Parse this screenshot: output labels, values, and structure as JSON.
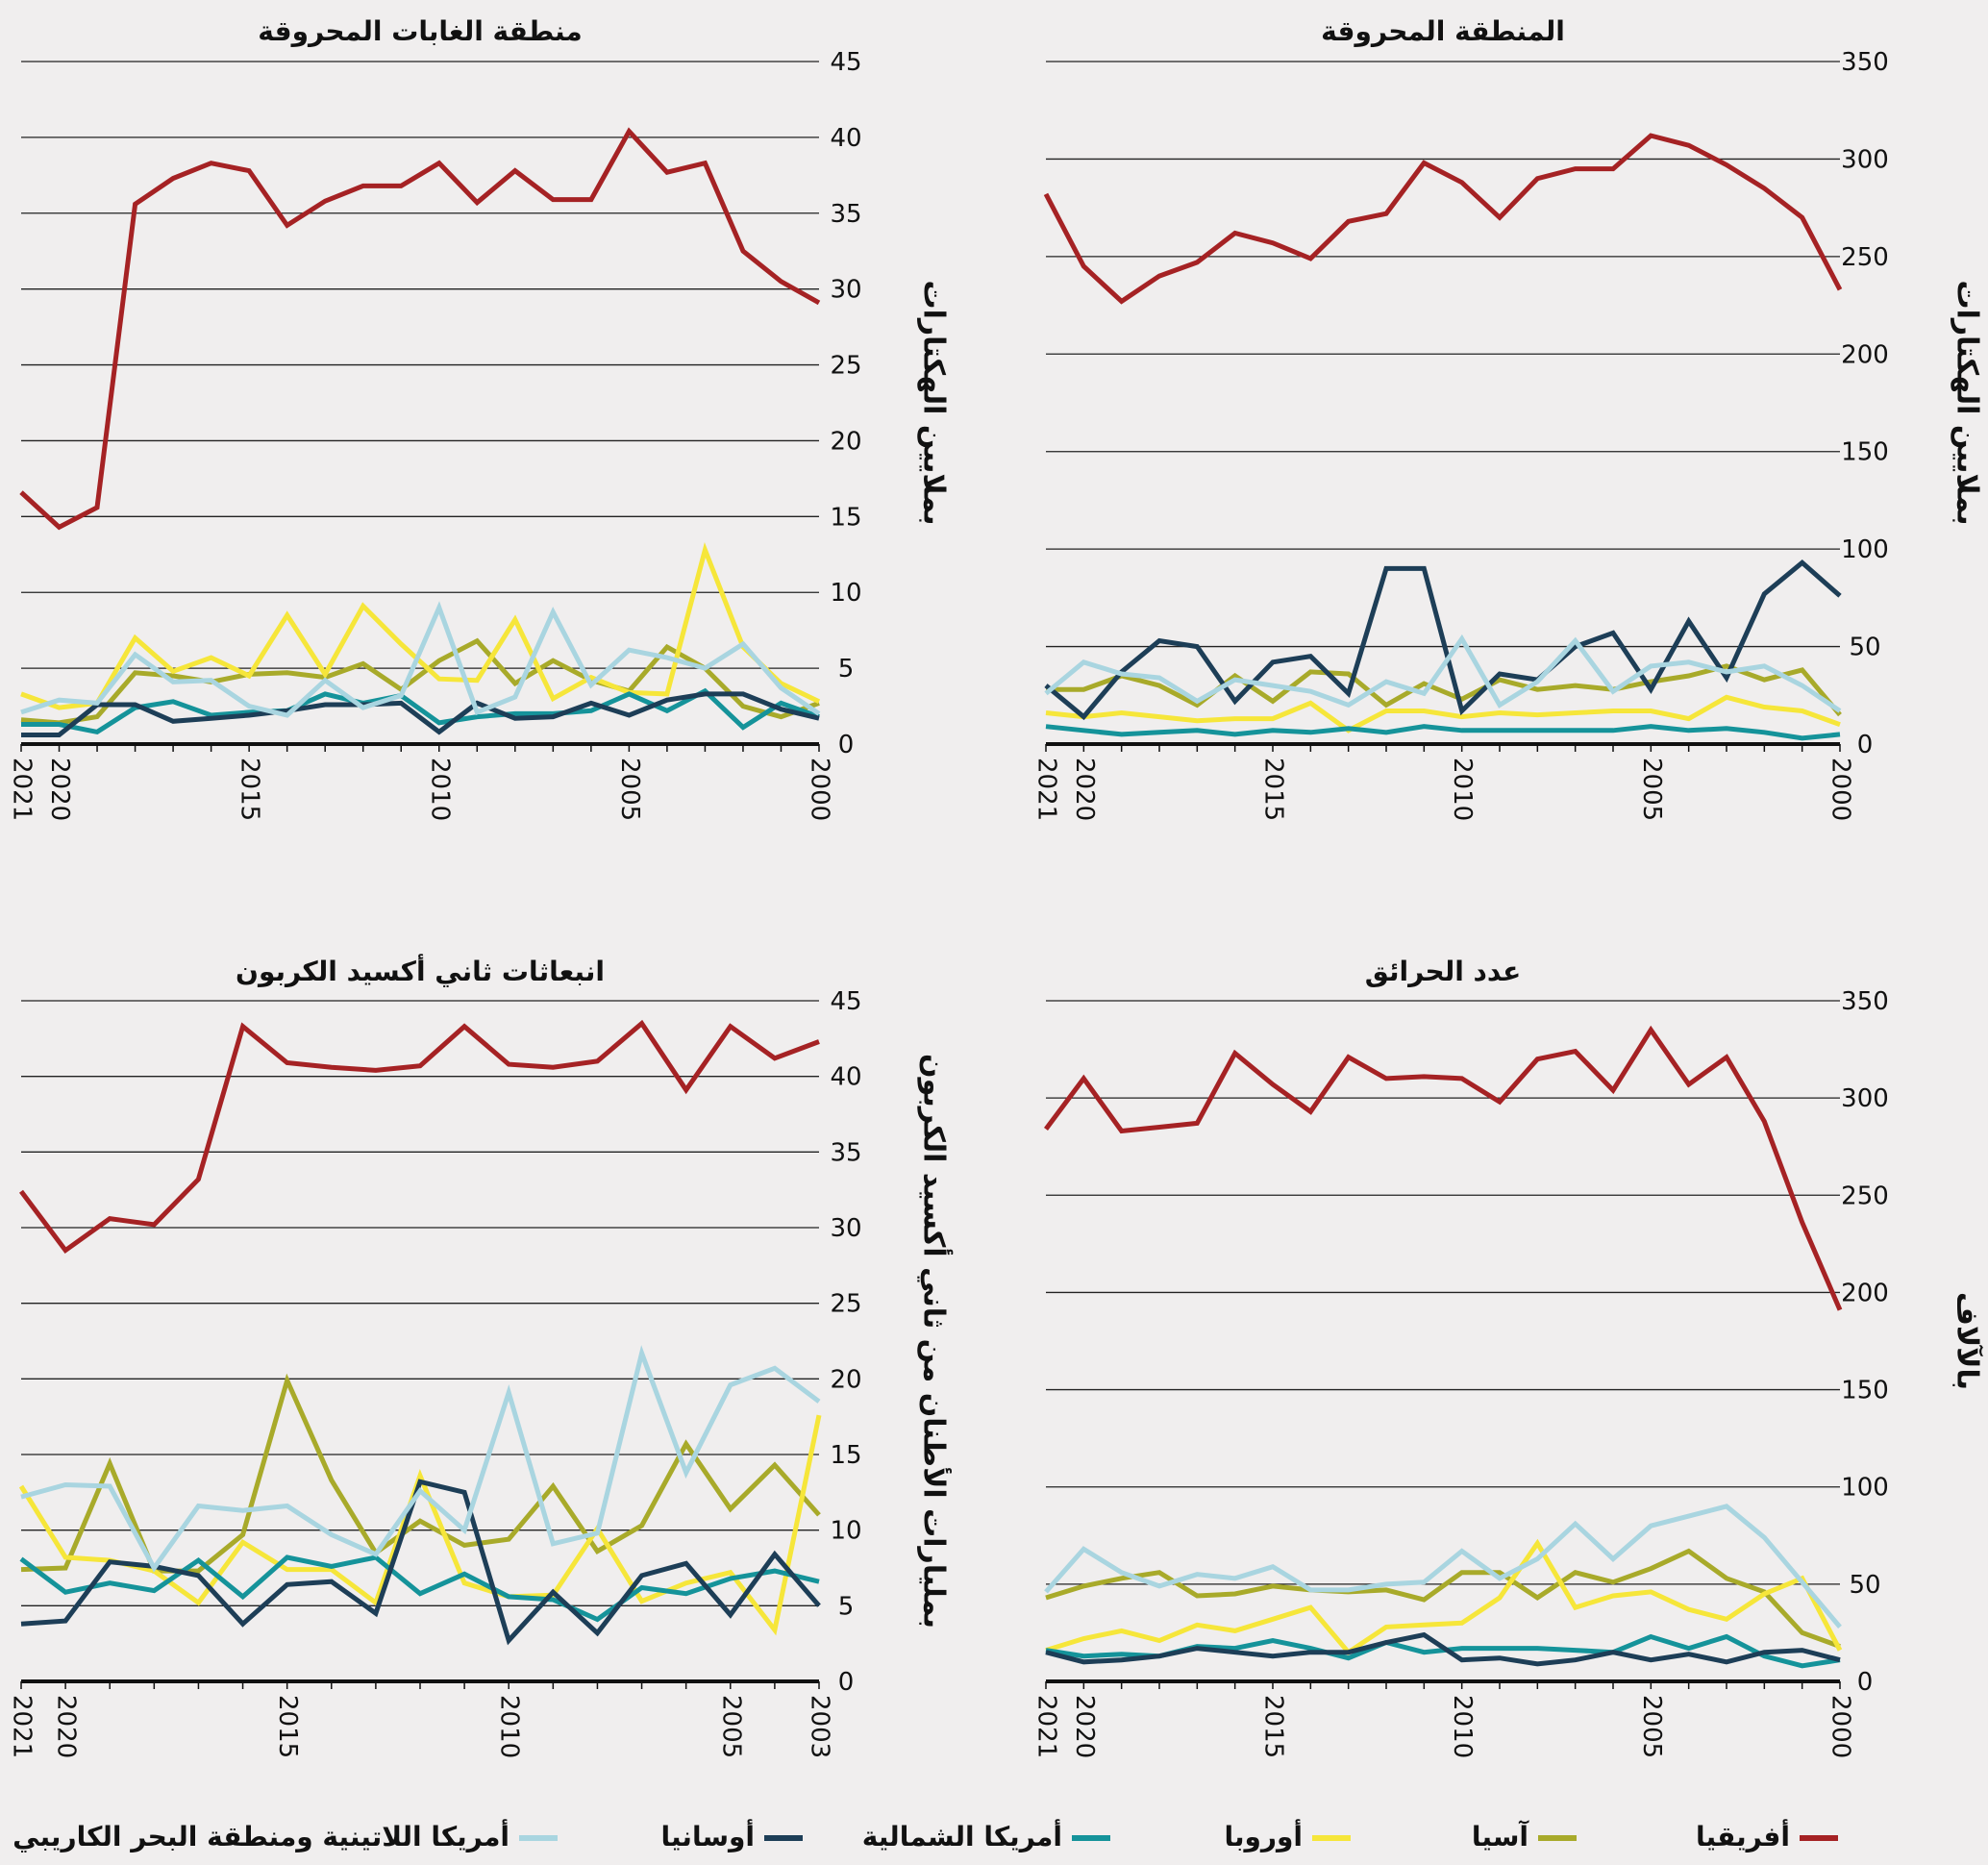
{
  "chart_data": [
    {
      "type": "line",
      "title": "المنطقة المحروقة",
      "ylabel": "بملايين الهكتارات",
      "ylim": [
        0,
        350
      ],
      "yticks": [
        "0",
        "50",
        "100",
        "150",
        "200",
        "250",
        "300",
        "350"
      ],
      "x": [
        2000,
        2001,
        2002,
        2003,
        2004,
        2005,
        2006,
        2007,
        2008,
        2009,
        2010,
        2011,
        2012,
        2013,
        2014,
        2015,
        2016,
        2017,
        2018,
        2019,
        2020,
        2021
      ],
      "xticks": [
        "2000",
        "2005",
        "2010",
        "2015",
        "2020",
        "2021"
      ],
      "series": [
        {
          "name": "أفريقيا",
          "values": [
            233,
            270,
            285,
            297,
            307,
            312,
            295,
            295,
            290,
            270,
            288,
            298,
            272,
            268,
            249,
            257,
            262,
            247,
            240,
            227,
            245,
            282
          ]
        },
        {
          "name": "آسيا",
          "values": [
            15,
            38,
            33,
            40,
            35,
            32,
            28,
            30,
            28,
            33,
            23,
            31,
            20,
            36,
            37,
            22,
            35,
            20,
            30,
            35,
            28,
            28
          ]
        },
        {
          "name": "أوروبا",
          "values": [
            10,
            17,
            19,
            24,
            13,
            17,
            17,
            16,
            15,
            16,
            14,
            17,
            17,
            7,
            21,
            13,
            13,
            12,
            14,
            16,
            14,
            16
          ]
        },
        {
          "name": "أمريكا الشمالية",
          "values": [
            5,
            3,
            6,
            8,
            7,
            9,
            7,
            7,
            7,
            7,
            7,
            9,
            6,
            8,
            6,
            7,
            5,
            7,
            6,
            5,
            7,
            9
          ]
        },
        {
          "name": "أوسانيا",
          "values": [
            76,
            93,
            77,
            34,
            63,
            28,
            57,
            50,
            33,
            36,
            17,
            90,
            90,
            26,
            45,
            42,
            22,
            50,
            53,
            37,
            14,
            30
          ]
        },
        {
          "name": "أمريكا اللاتينية ومنطقة البحر الكاريبي",
          "values": [
            17,
            30,
            40,
            37,
            42,
            40,
            27,
            53,
            32,
            20,
            54,
            26,
            32,
            20,
            27,
            30,
            33,
            22,
            34,
            36,
            42,
            26
          ]
        }
      ]
    },
    {
      "type": "line",
      "title": "منطقة الغابات المحروقة",
      "ylabel": "بملايين الهكتارات",
      "ylim": [
        0,
        45
      ],
      "yticks": [
        "0",
        "5",
        "10",
        "15",
        "20",
        "25",
        "30",
        "35",
        "40",
        "45"
      ],
      "x": [
        2000,
        2001,
        2002,
        2003,
        2004,
        2005,
        2006,
        2007,
        2008,
        2009,
        2010,
        2011,
        2012,
        2013,
        2014,
        2015,
        2016,
        2017,
        2018,
        2019,
        2020,
        2021
      ],
      "xticks": [
        "2000",
        "2005",
        "2010",
        "2015",
        "2020",
        "2021"
      ],
      "series": [
        {
          "name": "أفريقيا",
          "values": [
            29.1,
            30.5,
            32.5,
            38.3,
            37.7,
            40.4,
            35.9,
            35.9,
            37.8,
            35.7,
            38.3,
            36.8,
            36.8,
            35.8,
            34.2,
            37.8,
            38.3,
            37.3,
            35.6,
            15.6,
            14.3,
            16.6
          ]
        },
        {
          "name": "آسيا",
          "values": [
            2.7,
            1.8,
            2.5,
            5.0,
            6.4,
            3.5,
            4.2,
            5.5,
            4.0,
            6.8,
            5.5,
            3.6,
            5.3,
            4.4,
            4.7,
            4.6,
            4.1,
            4.5,
            4.7,
            1.8,
            1.4,
            1.6
          ]
        },
        {
          "name": "أوروبا",
          "values": [
            2.8,
            4.0,
            6.4,
            12.8,
            3.3,
            3.4,
            4.4,
            3.0,
            8.2,
            4.2,
            4.3,
            6.6,
            9.1,
            4.6,
            8.5,
            4.5,
            5.7,
            4.8,
            7.0,
            2.7,
            2.4,
            3.3
          ]
        },
        {
          "name": "أمريكا الشمالية",
          "values": [
            1.8,
            2.7,
            1.1,
            3.5,
            2.2,
            3.3,
            2.2,
            2.0,
            2.0,
            1.8,
            1.4,
            3.2,
            2.7,
            3.3,
            2.2,
            2.1,
            1.9,
            2.8,
            2.4,
            0.8,
            1.3,
            1.3
          ]
        },
        {
          "name": "أوسانيا",
          "values": [
            1.7,
            2.3,
            3.3,
            3.3,
            2.9,
            1.9,
            2.7,
            1.8,
            1.7,
            2.7,
            0.8,
            2.7,
            2.6,
            2.6,
            2.2,
            1.9,
            1.7,
            1.5,
            2.6,
            2.6,
            0.6,
            0.6
          ]
        },
        {
          "name": "أمريكا اللاتينية ومنطقة البحر الكاريبي",
          "values": [
            2.0,
            3.7,
            6.6,
            5.0,
            5.7,
            6.2,
            3.9,
            8.7,
            3.1,
            2.1,
            9.0,
            3.2,
            2.4,
            4.2,
            1.9,
            2.5,
            4.2,
            4.1,
            5.9,
            2.7,
            2.9,
            2.1
          ]
        }
      ]
    },
    {
      "type": "line",
      "title": "عدد الحرائق",
      "ylabel": "بالآلاف",
      "ylim": [
        0,
        350
      ],
      "yticks": [
        "0",
        "50",
        "100",
        "150",
        "200",
        "250",
        "300",
        "350"
      ],
      "x": [
        2000,
        2001,
        2002,
        2003,
        2004,
        2005,
        2006,
        2007,
        2008,
        2009,
        2010,
        2011,
        2012,
        2013,
        2014,
        2015,
        2016,
        2017,
        2018,
        2019,
        2020,
        2021
      ],
      "xticks": [
        "2000",
        "2005",
        "2010",
        "2015",
        "2020",
        "2021"
      ],
      "series": [
        {
          "name": "أفريقيا",
          "values": [
            191,
            236,
            288,
            321,
            307,
            335,
            304,
            324,
            320,
            298,
            310,
            311,
            310,
            321,
            293,
            307,
            323,
            287,
            285,
            283,
            310,
            284
          ]
        },
        {
          "name": "آسيا",
          "values": [
            18,
            25,
            46,
            53,
            67,
            58,
            51,
            56,
            43,
            56,
            56,
            42,
            47,
            46,
            47,
            49,
            45,
            44,
            56,
            53,
            49,
            43
          ]
        },
        {
          "name": "أوروبا",
          "values": [
            16,
            53,
            45,
            32,
            37,
            46,
            44,
            38,
            71,
            43,
            30,
            29,
            28,
            15,
            38,
            32,
            26,
            29,
            21,
            26,
            22,
            16
          ]
        },
        {
          "name": "أمريكا الشمالية",
          "values": [
            11,
            8,
            13,
            23,
            17,
            23,
            15,
            16,
            17,
            17,
            17,
            15,
            20,
            12,
            17,
            21,
            17,
            18,
            13,
            14,
            13,
            16
          ]
        },
        {
          "name": "أوسانيا",
          "values": [
            11,
            16,
            15,
            10,
            14,
            11,
            15,
            11,
            9,
            12,
            11,
            24,
            20,
            15,
            15,
            13,
            15,
            17,
            13,
            11,
            10,
            15
          ]
        },
        {
          "name": "أمريكا اللاتينية ومنطقة البحر الكاريبي",
          "values": [
            28,
            51,
            74,
            90,
            85,
            80,
            63,
            81,
            63,
            53,
            67,
            51,
            50,
            47,
            47,
            59,
            53,
            55,
            49,
            56,
            68,
            46
          ]
        }
      ]
    },
    {
      "type": "line",
      "title": "انبعاثات ثاني أكسيد الكربون",
      "ylabel": "بمليارات الأطنان من ثاني أكسيد الكربون",
      "ylim": [
        0,
        45
      ],
      "yticks": [
        "0",
        "5",
        "10",
        "15",
        "20",
        "25",
        "30",
        "35",
        "40",
        "45"
      ],
      "x": [
        2003,
        2004,
        2005,
        2006,
        2007,
        2008,
        2009,
        2010,
        2011,
        2012,
        2013,
        2014,
        2015,
        2016,
        2017,
        2018,
        2019,
        2020,
        2021
      ],
      "xticks": [
        "2003",
        "2005",
        "2010",
        "2015",
        "2020",
        "2021"
      ],
      "series": [
        {
          "name": "أفريقيا",
          "values": [
            42.3,
            41.2,
            43.3,
            39.1,
            43.5,
            41.0,
            40.6,
            40.8,
            43.3,
            40.7,
            40.4,
            40.6,
            40.9,
            43.3,
            33.2,
            30.2,
            30.6,
            28.5,
            32.4
          ]
        },
        {
          "name": "آسيا",
          "values": [
            11.0,
            14.3,
            11.4,
            15.7,
            10.3,
            8.6,
            12.9,
            9.4,
            9.0,
            10.6,
            8.5,
            13.3,
            19.9,
            9.7,
            7.3,
            7.3,
            14.4,
            7.5,
            7.4
          ]
        },
        {
          "name": "أوروبا",
          "values": [
            17.6,
            3.4,
            7.2,
            6.5,
            5.3,
            10.1,
            5.7,
            5.6,
            6.5,
            13.6,
            5.2,
            7.4,
            7.4,
            9.2,
            5.2,
            7.3,
            8.0,
            8.2,
            12.9
          ]
        },
        {
          "name": "أمريكا الشمالية",
          "values": [
            6.6,
            7.3,
            6.8,
            5.8,
            6.2,
            4.1,
            5.4,
            5.6,
            7.1,
            5.8,
            8.2,
            7.6,
            8.2,
            5.6,
            8.0,
            6.0,
            6.5,
            5.9,
            8.1
          ]
        },
        {
          "name": "أوسانيا",
          "values": [
            5.0,
            8.4,
            4.4,
            7.8,
            7.0,
            3.2,
            5.9,
            2.7,
            12.5,
            13.2,
            4.5,
            6.6,
            6.4,
            3.8,
            7.0,
            7.6,
            7.9,
            4.0,
            3.8
          ]
        },
        {
          "name": "أمريكا اللاتينية ومنطقة البحر الكاريبي",
          "values": [
            18.5,
            20.7,
            19.6,
            13.8,
            21.7,
            9.8,
            9.1,
            19.1,
            10.0,
            12.6,
            8.4,
            9.7,
            11.6,
            11.3,
            11.6,
            7.5,
            12.9,
            13.0,
            12.2
          ]
        }
      ]
    }
  ],
  "legend": [
    {
      "name": "أفريقيا",
      "color": "#a52224"
    },
    {
      "name": "آسيا",
      "color": "#a8aa2a"
    },
    {
      "name": "أوروبا",
      "color": "#f6e63a"
    },
    {
      "name": "أمريكا الشمالية",
      "color": "#15939a"
    },
    {
      "name": "أوسانيا",
      "color": "#1d3e57"
    },
    {
      "name": "أمريكا اللاتينية ومنطقة البحر الكاريبي",
      "color": "#a9d5e0"
    }
  ]
}
